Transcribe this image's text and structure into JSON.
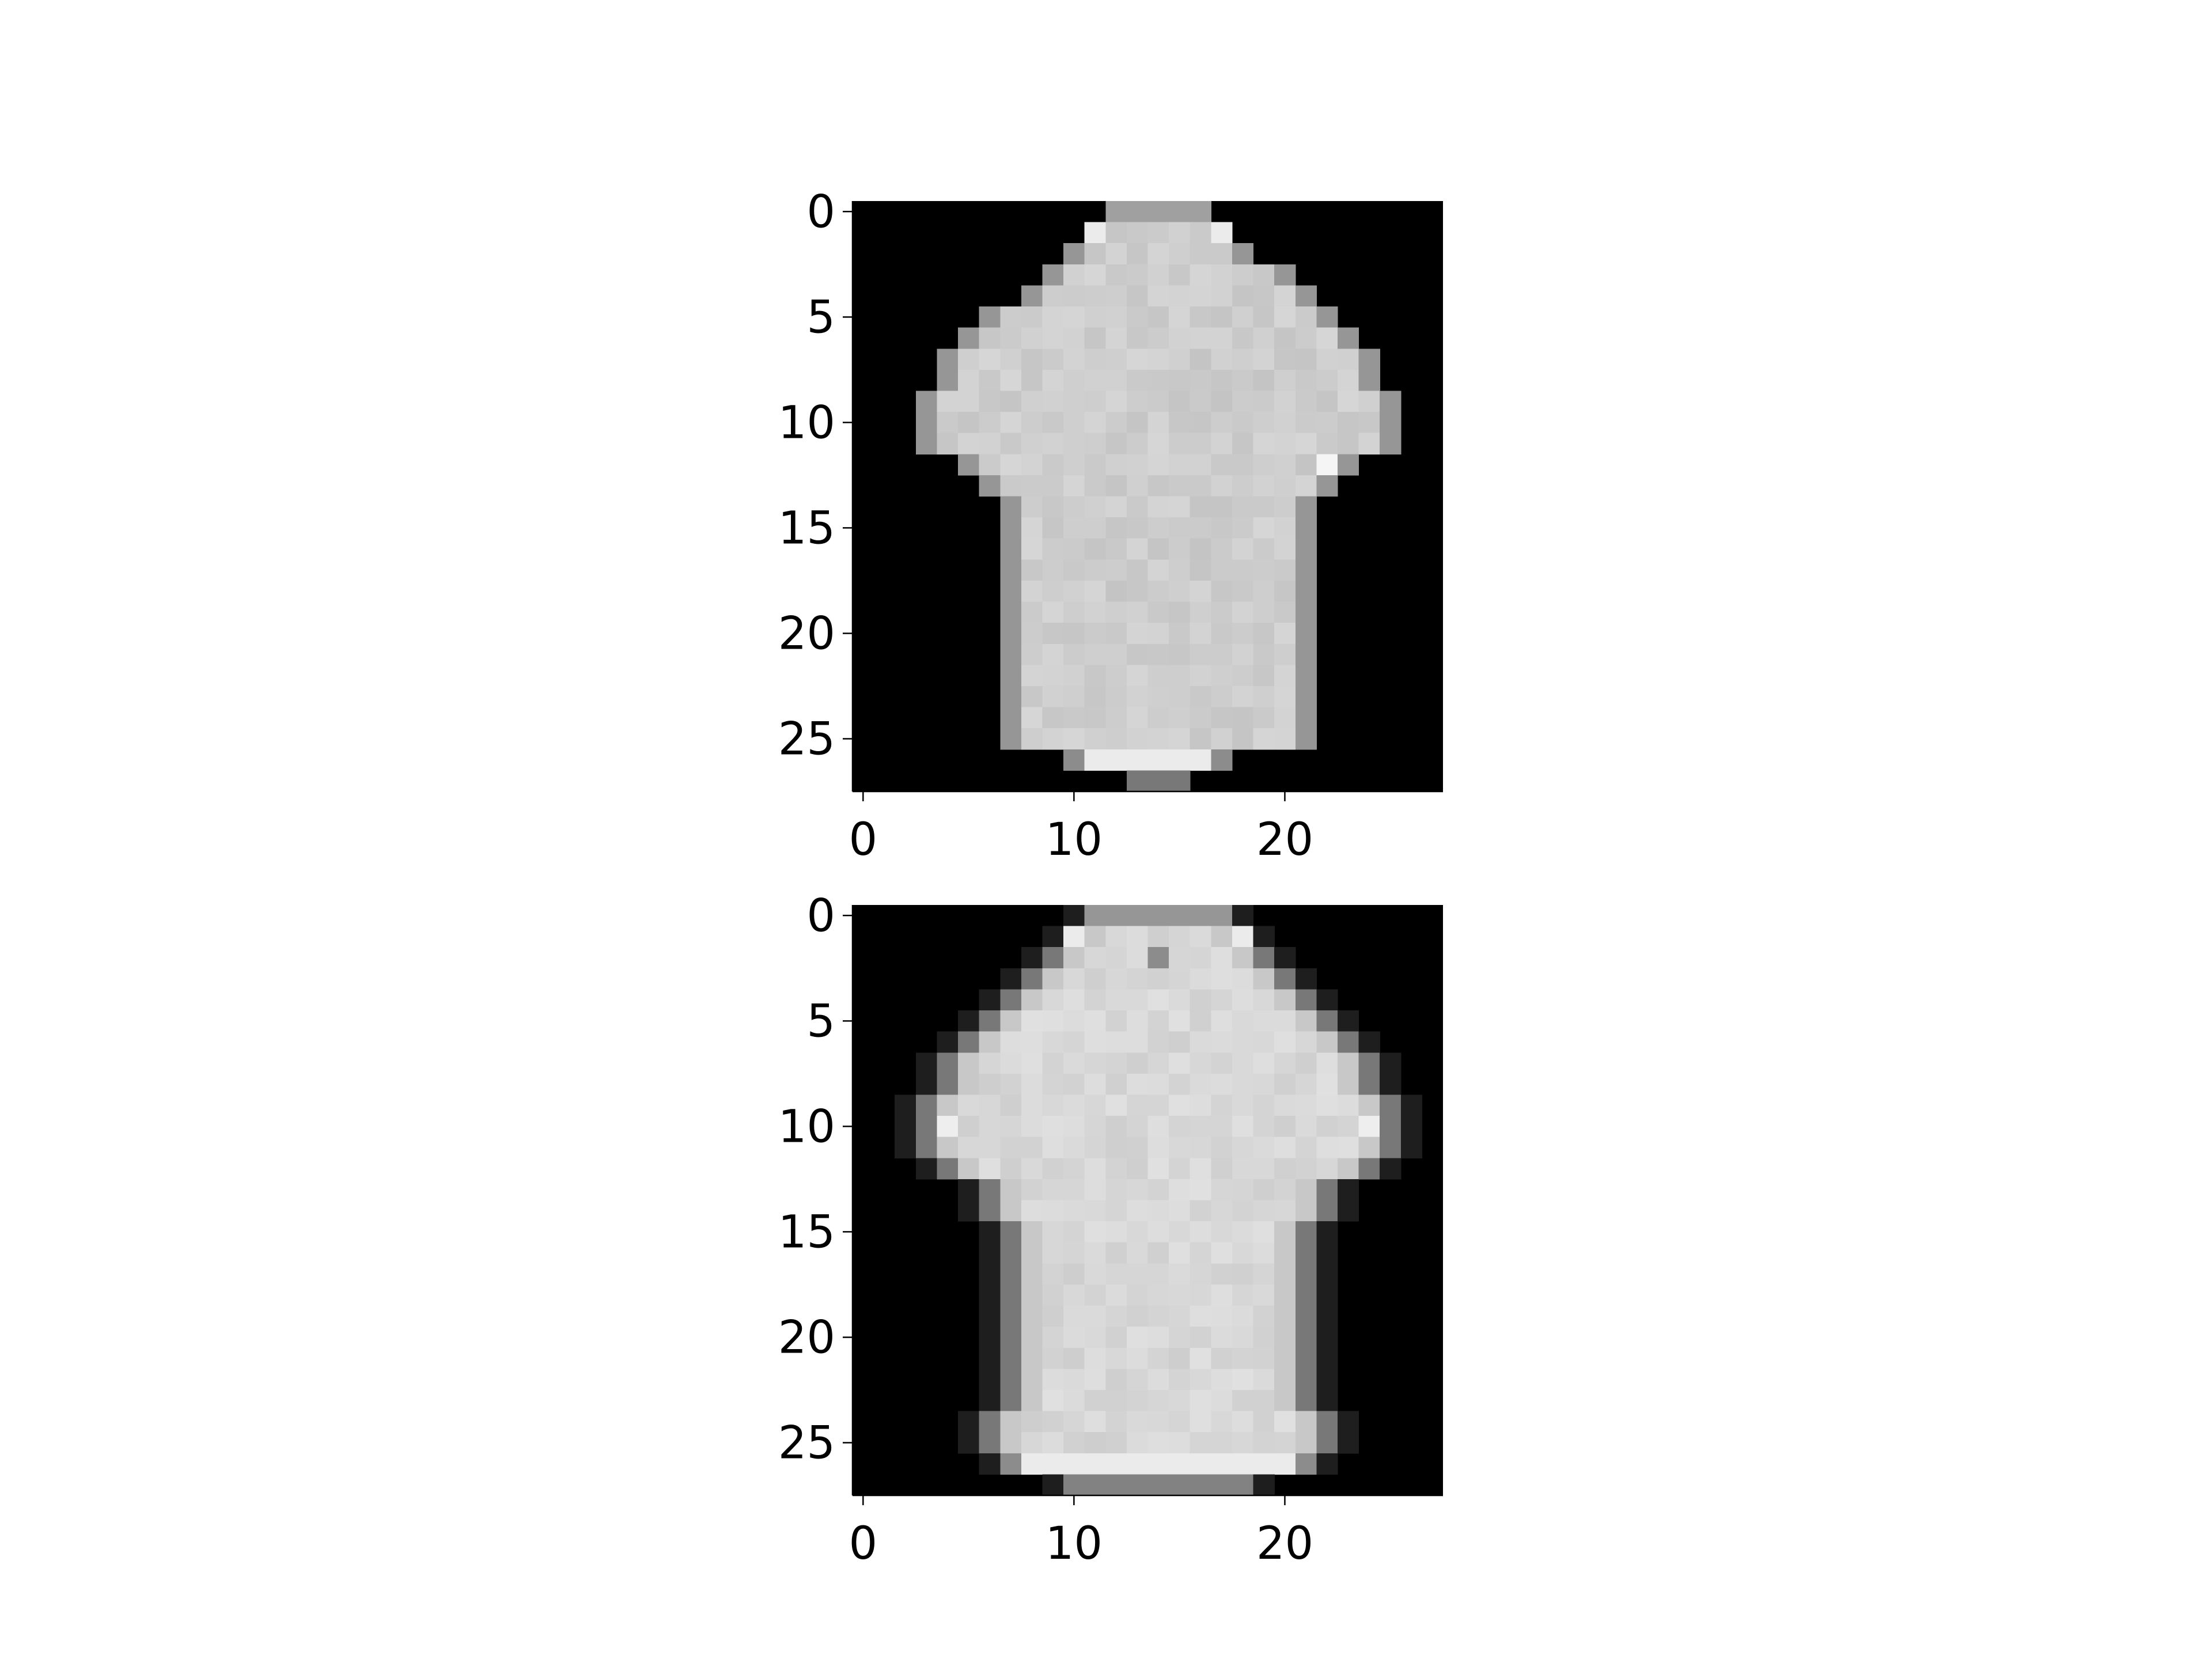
{
  "chart_data": [
    {
      "type": "heatmap",
      "title": "",
      "xlabel": "",
      "ylabel": "",
      "colormap": "gray",
      "shape": [
        28,
        28
      ],
      "xlim": [
        -0.5,
        27.5
      ],
      "ylim": [
        27.5,
        -0.5
      ],
      "x_ticks": [
        0,
        10,
        20
      ],
      "y_ticks": [
        0,
        5,
        10,
        15,
        20,
        25
      ],
      "x_tick_labels": [
        "0",
        "10",
        "20"
      ],
      "y_tick_labels": [
        "0",
        "5",
        "10",
        "15",
        "20",
        "25"
      ],
      "content": "T-shirt"
    },
    {
      "type": "heatmap",
      "title": "",
      "xlabel": "",
      "ylabel": "",
      "colormap": "gray",
      "shape": [
        28,
        28
      ],
      "xlim": [
        -0.5,
        27.5
      ],
      "ylim": [
        27.5,
        -0.5
      ],
      "x_ticks": [
        0,
        10,
        20
      ],
      "y_ticks": [
        0,
        5,
        10,
        15,
        20,
        25
      ],
      "x_tick_labels": [
        "0",
        "10",
        "20"
      ],
      "y_tick_labels": [
        "0",
        "5",
        "10",
        "15",
        "20",
        "25"
      ],
      "content": "T-shirt"
    }
  ],
  "colors": {
    "background": "#ffffff",
    "image_background": "#000000",
    "axis": "#000000"
  }
}
